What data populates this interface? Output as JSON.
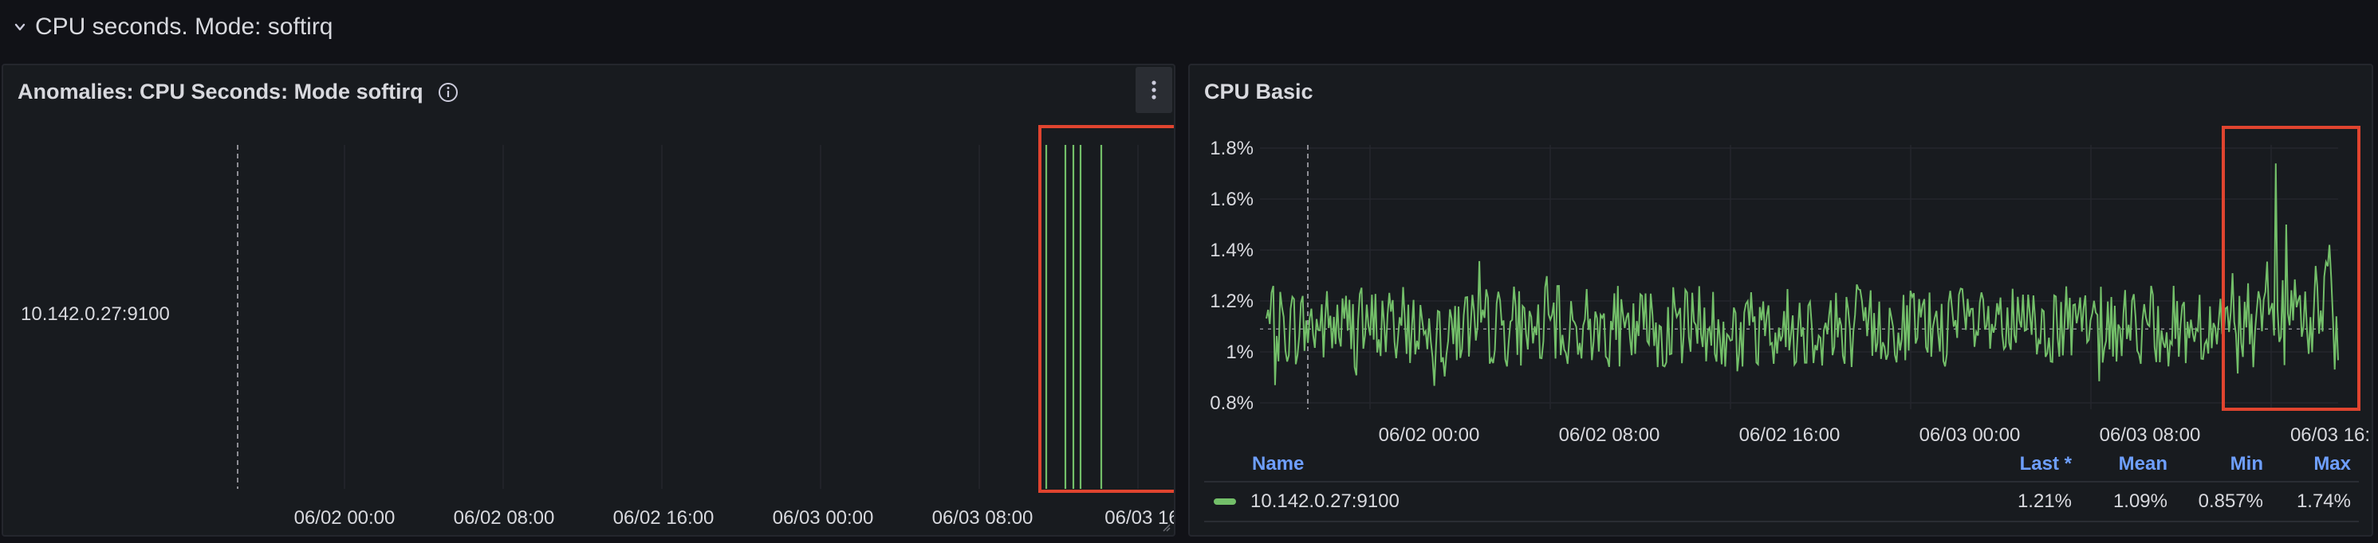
{
  "row": {
    "title": "CPU seconds. Mode: softirq"
  },
  "panel_anomalies": {
    "title": "Anomalies: CPU Seconds: Mode softirq",
    "series_label": "10.142.0.27:9100",
    "x_ticks": [
      "06/02 00:00",
      "06/02 08:00",
      "06/02 16:00",
      "06/03 00:00",
      "06/03 08:00",
      "06/03 16"
    ],
    "highlight_color": "#e0442f",
    "anomaly_color": "#73bf69"
  },
  "panel_cpu": {
    "title": "CPU Basic",
    "y_ticks": [
      "1.8%",
      "1.6%",
      "1.4%",
      "1.2%",
      "1%",
      "0.8%"
    ],
    "x_ticks": [
      "06/02 00:00",
      "06/02 08:00",
      "06/02 16:00",
      "06/03 00:00",
      "06/03 08:00",
      "06/03 16:"
    ],
    "line_color": "#73bf69",
    "highlight_color": "#e0442f",
    "legend": {
      "headers": {
        "name": "Name",
        "last": "Last *",
        "mean": "Mean",
        "min": "Min",
        "max": "Max"
      },
      "rows": [
        {
          "name": "10.142.0.27:9100",
          "last": "1.21%",
          "mean": "1.09%",
          "min": "0.857%",
          "max": "1.74%"
        }
      ]
    }
  },
  "chart_data": [
    {
      "type": "line",
      "title": "Anomalies: CPU Seconds: Mode softirq",
      "categories": [
        "10.142.0.27:9100"
      ],
      "x_ticks": [
        "06/02 00:00",
        "06/02 08:00",
        "06/02 16:00",
        "06/03 00:00",
        "06/03 08:00",
        "06/03 16"
      ],
      "series": [
        {
          "name": "10.142.0.27:9100",
          "anomaly_marks": 5
        }
      ]
    },
    {
      "type": "line",
      "title": "CPU Basic",
      "x_ticks": [
        "06/02 00:00",
        "06/02 08:00",
        "06/02 16:00",
        "06/03 00:00",
        "06/03 08:00",
        "06/03 16:"
      ],
      "ylim": [
        0.75,
        1.85
      ],
      "ytick_values": [
        1.8,
        1.6,
        1.4,
        1.2,
        1.0,
        0.8
      ],
      "series": [
        {
          "name": "10.142.0.27:9100",
          "last": 1.21,
          "mean": 1.09,
          "min": 0.857,
          "max": 1.74
        }
      ],
      "grid": true,
      "legend": "bottom"
    }
  ]
}
